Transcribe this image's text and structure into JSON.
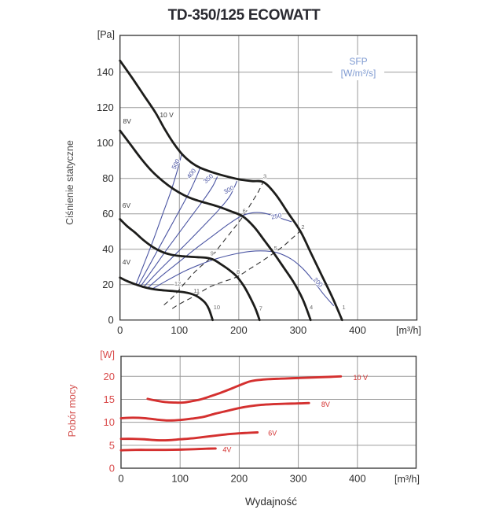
{
  "page": {
    "title": "TD-350/125 ECOWATT"
  },
  "colors": {
    "curve_black": "#1d1d1b",
    "curve_blue": "#4b55a3",
    "sfp_legend_blue": "#7e9ad1",
    "curve_red": "#d4302f",
    "red_tick": "#d94b4b",
    "grid": "#9b9b9b",
    "frame": "#3d3d3d",
    "tick_text": "#2e2e2e",
    "point_label_gray": "#6b6b6b",
    "voltage_label": "#3a3a3a",
    "dashed_line": "#2f2f2f"
  },
  "chart_data": [
    {
      "id": "static-pressure",
      "type": "line",
      "ylabel": "Ciśnienie statyczne",
      "y_unit": "[Pa]",
      "x_unit": "[m³/h]",
      "xlim": [
        0,
        500
      ],
      "ylim": [
        0,
        160.8
      ],
      "xticks": [
        0,
        100,
        200,
        300,
        400
      ],
      "yticks": [
        0,
        20,
        40,
        60,
        80,
        100,
        120,
        140
      ],
      "grid": true,
      "legend": {
        "line1": "SFP",
        "line2": "[W/m³/s]",
        "position": "top-right"
      },
      "series": [
        {
          "name": "10 V",
          "label_pos": {
            "x": 67,
            "y": 114.5,
            "anchor": "start"
          },
          "points": [
            [
              0,
              146.5
            ],
            [
              20,
              137
            ],
            [
              40,
              127
            ],
            [
              60,
              117
            ],
            [
              75,
              108
            ],
            [
              90,
              100
            ],
            [
              105,
              93.5
            ],
            [
              120,
              89
            ],
            [
              135,
              86
            ],
            [
              155,
              83.5
            ],
            [
              175,
              81.5
            ],
            [
              200,
              79.5
            ],
            [
              222,
              78.5
            ],
            [
              242,
              77.8
            ],
            [
              262,
              71
            ],
            [
              283,
              60.5
            ],
            [
              304,
              50
            ],
            [
              322,
              37.5
            ],
            [
              340,
              25
            ],
            [
              358,
              12.5
            ],
            [
              374,
              0
            ]
          ]
        },
        {
          "name": "8V",
          "label_pos": {
            "x": 5,
            "y": 111,
            "anchor": "start"
          },
          "points": [
            [
              0,
              107
            ],
            [
              18,
              99
            ],
            [
              36,
              91
            ],
            [
              54,
              84
            ],
            [
              72,
              78.5
            ],
            [
              90,
              74
            ],
            [
              108,
              70.5
            ],
            [
              126,
              68
            ],
            [
              146,
              66
            ],
            [
              166,
              64
            ],
            [
              186,
              61.5
            ],
            [
              207,
              58.5
            ],
            [
              226,
              52.5
            ],
            [
              243,
              45
            ],
            [
              259,
              37.8
            ],
            [
              276,
              29.5
            ],
            [
              293,
              21
            ],
            [
              308,
              11.5
            ],
            [
              321,
              0
            ]
          ]
        },
        {
          "name": "6V",
          "label_pos": {
            "x": 4,
            "y": 63.5,
            "anchor": "start"
          },
          "points": [
            [
              0,
              57
            ],
            [
              12,
              53
            ],
            [
              25,
              49.5
            ],
            [
              40,
              45
            ],
            [
              55,
              41.3
            ],
            [
              70,
              38.6
            ],
            [
              85,
              37
            ],
            [
              100,
              36.2
            ],
            [
              115,
              35.8
            ],
            [
              130,
              35.5
            ],
            [
              145,
              35.2
            ],
            [
              158,
              34
            ],
            [
              170,
              31.5
            ],
            [
              183,
              28.5
            ],
            [
              196,
              24.8
            ],
            [
              208,
              19.5
            ],
            [
              218,
              13.5
            ],
            [
              228,
              6.5
            ],
            [
              235,
              0
            ]
          ]
        },
        {
          "name": "4V",
          "label_pos": {
            "x": 4,
            "y": 31.5,
            "anchor": "start"
          },
          "points": [
            [
              0,
              24
            ],
            [
              12,
              22
            ],
            [
              25,
              20.3
            ],
            [
              38,
              18.8
            ],
            [
              52,
              17.7
            ],
            [
              66,
              17
            ],
            [
              80,
              16.6
            ],
            [
              95,
              16.2
            ],
            [
              108,
              15.7
            ],
            [
              118,
              15
            ],
            [
              127,
              13.9
            ],
            [
              136,
              12
            ],
            [
              144,
              9.5
            ],
            [
              150,
              6
            ],
            [
              156,
              0
            ]
          ]
        }
      ],
      "sfp_curves": [
        {
          "value": "500",
          "label_pos": {
            "x": 97,
            "y": 87.5,
            "angle": -63
          },
          "points": [
            [
              27,
              20.2
            ],
            [
              42,
              33
            ],
            [
              57,
              46
            ],
            [
              72,
              60
            ],
            [
              86,
              73
            ],
            [
              97,
              85
            ],
            [
              104,
              94
            ]
          ]
        },
        {
          "value": "400",
          "label_pos": {
            "x": 123,
            "y": 82,
            "angle": -53
          },
          "points": [
            [
              31,
              19.7
            ],
            [
              48,
              30
            ],
            [
              66,
              41
            ],
            [
              84,
              52
            ],
            [
              102,
              63
            ],
            [
              118,
              73
            ],
            [
              129,
              81
            ],
            [
              135,
              86
            ]
          ]
        },
        {
          "value": "350",
          "label_pos": {
            "x": 151,
            "y": 79,
            "angle": -42
          },
          "points": [
            [
              35,
              19.2
            ],
            [
              55,
              28.5
            ],
            [
              77,
              39
            ],
            [
              99,
              49
            ],
            [
              121,
              59
            ],
            [
              141,
              68
            ],
            [
              156,
              75.5
            ],
            [
              164,
              81
            ]
          ]
        },
        {
          "value": "300",
          "label_pos": {
            "x": 185,
            "y": 72.5,
            "angle": -29
          },
          "points": [
            [
              40,
              18.7
            ],
            [
              63,
              27
            ],
            [
              90,
              36
            ],
            [
              117,
              45
            ],
            [
              143,
              54
            ],
            [
              167,
              62.5
            ],
            [
              185,
              70
            ],
            [
              197,
              78.5
            ]
          ]
        },
        {
          "value": "250",
          "label_pos": {
            "x": 264,
            "y": 57.5,
            "angle": -11
          },
          "points": [
            [
              46,
              18
            ],
            [
              72,
              25.5
            ],
            [
              100,
              33
            ],
            [
              130,
              41
            ],
            [
              158,
              48
            ],
            [
              182,
              54
            ],
            [
              203,
              58.5
            ],
            [
              222,
              60.5
            ],
            [
              240,
              60.5
            ],
            [
              258,
              59
            ],
            [
              275,
              57
            ],
            [
              289,
              55.5
            ]
          ]
        },
        {
          "value": "200",
          "label_pos": {
            "x": 331,
            "y": 20.5,
            "angle": 45
          },
          "points": [
            [
              54,
              17.5
            ],
            [
              80,
              22.5
            ],
            [
              108,
              27.5
            ],
            [
              136,
              31.5
            ],
            [
              164,
              34.8
            ],
            [
              192,
              37.2
            ],
            [
              220,
              38.8
            ],
            [
              245,
              39
            ],
            [
              265,
              38
            ],
            [
              288,
              34.5
            ],
            [
              308,
              29
            ],
            [
              326,
              22
            ],
            [
              343,
              14.5
            ],
            [
              360,
              8
            ]
          ]
        }
      ],
      "system_curves": [
        {
          "name": "system-curve-a",
          "points": [
            [
              74,
              8.5
            ],
            [
              86,
              12
            ],
            [
              97,
              16
            ],
            [
              112,
              22
            ],
            [
              130,
              28.5
            ],
            [
              152,
              35
            ],
            [
              171,
              43
            ],
            [
              190,
              51
            ],
            [
              207,
              58.5
            ],
            [
              222,
              66.5
            ],
            [
              233,
              72.5
            ],
            [
              241,
              78
            ]
          ]
        },
        {
          "name": "system-curve-b",
          "points": [
            [
              88,
              6.5
            ],
            [
              100,
              9
            ],
            [
              114,
              11.5
            ],
            [
              128,
              14
            ],
            [
              150,
              18.5
            ],
            [
              173,
              21.5
            ],
            [
              197,
              24.4
            ],
            [
              219,
              29
            ],
            [
              240,
              33.5
            ],
            [
              259,
              37.8
            ],
            [
              276,
              42
            ],
            [
              291,
              46.5
            ],
            [
              303,
              50
            ]
          ]
        }
      ],
      "point_markers": [
        {
          "n": "1",
          "x": 377,
          "y": 6
        },
        {
          "n": "2",
          "x": 308,
          "y": 51.5
        },
        {
          "n": "3",
          "x": 244,
          "y": 80
        },
        {
          "n": "4",
          "x": 322,
          "y": 6
        },
        {
          "n": "5",
          "x": 262,
          "y": 39.5
        },
        {
          "n": "6",
          "x": 209,
          "y": 60.5
        },
        {
          "n": "7",
          "x": 237,
          "y": 5.5
        },
        {
          "n": "8",
          "x": 199,
          "y": 26
        },
        {
          "n": "9",
          "x": 155,
          "y": 36.5
        },
        {
          "n": "10",
          "x": 163,
          "y": 6
        },
        {
          "n": "11",
          "x": 129,
          "y": 15.5
        },
        {
          "n": "12",
          "x": 97,
          "y": 19.5
        }
      ]
    },
    {
      "id": "power",
      "type": "line",
      "ylabel": "Pobór mocy",
      "y_unit": "[W]",
      "xlabel": "Wydajność",
      "x_unit": "[m³/h]",
      "xlim": [
        0,
        500
      ],
      "ylim": [
        0,
        24.4
      ],
      "xticks": [
        0,
        100,
        200,
        300,
        400
      ],
      "yticks": [
        0,
        5,
        10,
        15,
        20
      ],
      "grid": true,
      "series": [
        {
          "name": "10 V",
          "label_pos": {
            "x": 393,
            "y": 19.7,
            "anchor": "start"
          },
          "points": [
            [
              45,
              15.1
            ],
            [
              60,
              14.7
            ],
            [
              75,
              14.4
            ],
            [
              90,
              14.3
            ],
            [
              105,
              14.3
            ],
            [
              120,
              14.6
            ],
            [
              135,
              15.0
            ],
            [
              152,
              15.7
            ],
            [
              170,
              16.5
            ],
            [
              188,
              17.4
            ],
            [
              205,
              18.3
            ],
            [
              218,
              18.9
            ],
            [
              232,
              19.2
            ],
            [
              250,
              19.4
            ],
            [
              270,
              19.5
            ],
            [
              290,
              19.6
            ],
            [
              312,
              19.7
            ],
            [
              335,
              19.8
            ],
            [
              355,
              19.9
            ],
            [
              372,
              20.0
            ]
          ]
        },
        {
          "name": "8V",
          "label_pos": {
            "x": 339,
            "y": 13.9,
            "anchor": "start"
          },
          "points": [
            [
              0,
              10.9
            ],
            [
              20,
              11.0
            ],
            [
              40,
              10.9
            ],
            [
              60,
              10.6
            ],
            [
              80,
              10.4
            ],
            [
              100,
              10.5
            ],
            [
              120,
              10.8
            ],
            [
              140,
              11.2
            ],
            [
              160,
              11.9
            ],
            [
              180,
              12.5
            ],
            [
              200,
              13.1
            ],
            [
              218,
              13.5
            ],
            [
              238,
              13.8
            ],
            [
              258,
              13.95
            ],
            [
              278,
              14.05
            ],
            [
              298,
              14.1
            ],
            [
              318,
              14.2
            ]
          ]
        },
        {
          "name": "6V",
          "label_pos": {
            "x": 249,
            "y": 7.6,
            "anchor": "start"
          },
          "points": [
            [
              0,
              6.4
            ],
            [
              20,
              6.4
            ],
            [
              40,
              6.3
            ],
            [
              60,
              6.1
            ],
            [
              80,
              6.1
            ],
            [
              100,
              6.3
            ],
            [
              120,
              6.5
            ],
            [
              140,
              6.8
            ],
            [
              160,
              7.1
            ],
            [
              180,
              7.4
            ],
            [
              200,
              7.6
            ],
            [
              215,
              7.7
            ],
            [
              231,
              7.8
            ]
          ]
        },
        {
          "name": "4V",
          "label_pos": {
            "x": 172,
            "y": 4.0,
            "anchor": "start"
          },
          "points": [
            [
              0,
              3.9
            ],
            [
              25,
              4.0
            ],
            [
              50,
              4.0
            ],
            [
              75,
              4.0
            ],
            [
              100,
              4.05
            ],
            [
              125,
              4.15
            ],
            [
              145,
              4.25
            ],
            [
              160,
              4.3
            ]
          ]
        }
      ]
    }
  ]
}
